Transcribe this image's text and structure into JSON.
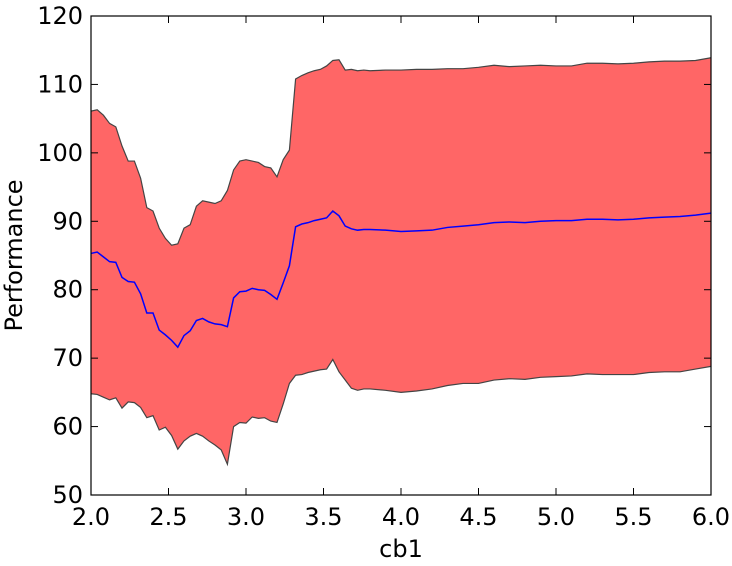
{
  "chart_data": {
    "type": "area",
    "title": "",
    "xlabel": "cb1",
    "ylabel": "Performance",
    "xlim": [
      2.0,
      6.0
    ],
    "ylim": [
      50,
      120
    ],
    "xticks": [
      2.0,
      2.5,
      3.0,
      3.5,
      4.0,
      4.5,
      5.0,
      5.5,
      6.0
    ],
    "xtick_labels": [
      "2.0",
      "2.5",
      "3.0",
      "3.5",
      "4.0",
      "4.5",
      "5.0",
      "5.5",
      "6.0"
    ],
    "yticks": [
      50,
      60,
      70,
      80,
      90,
      100,
      110,
      120
    ],
    "ytick_labels": [
      "50",
      "60",
      "70",
      "80",
      "90",
      "100",
      "110",
      "120"
    ],
    "grid": false,
    "legend": "none",
    "colors": {
      "band_fill": "#ff6666",
      "band_edge": "#444444",
      "mean_line": "#0000ff"
    },
    "x": [
      2.0,
      2.04,
      2.08,
      2.12,
      2.16,
      2.2,
      2.24,
      2.28,
      2.32,
      2.36,
      2.4,
      2.44,
      2.48,
      2.52,
      2.56,
      2.6,
      2.64,
      2.68,
      2.72,
      2.76,
      2.8,
      2.84,
      2.88,
      2.92,
      2.96,
      3.0,
      3.04,
      3.08,
      3.12,
      3.16,
      3.2,
      3.24,
      3.28,
      3.32,
      3.36,
      3.4,
      3.44,
      3.48,
      3.52,
      3.56,
      3.6,
      3.64,
      3.68,
      3.72,
      3.76,
      3.8,
      3.9,
      4.0,
      4.1,
      4.2,
      4.3,
      4.4,
      4.5,
      4.6,
      4.7,
      4.8,
      4.9,
      5.0,
      5.1,
      5.2,
      5.3,
      5.4,
      5.5,
      5.6,
      5.7,
      5.8,
      5.9,
      6.0
    ],
    "series": [
      {
        "role": "upper",
        "values": [
          106.1,
          106.3,
          105.5,
          104.3,
          103.8,
          101.0,
          98.8,
          98.8,
          96.3,
          92.0,
          91.5,
          89.0,
          87.5,
          86.5,
          86.7,
          89.0,
          89.5,
          92.2,
          93.0,
          92.8,
          92.6,
          93.0,
          94.5,
          97.5,
          98.8,
          99.0,
          98.8,
          98.6,
          98.0,
          97.8,
          96.5,
          99.0,
          100.4,
          110.8,
          111.3,
          111.7,
          112.0,
          112.2,
          112.7,
          113.5,
          113.6,
          112.1,
          112.2,
          112.0,
          112.1,
          112.0,
          112.1,
          112.1,
          112.2,
          112.2,
          112.3,
          112.3,
          112.5,
          112.8,
          112.6,
          112.7,
          112.8,
          112.7,
          112.7,
          113.1,
          113.1,
          113.0,
          113.1,
          113.3,
          113.4,
          113.4,
          113.5,
          113.9
        ]
      },
      {
        "role": "mean",
        "values": [
          85.3,
          85.5,
          84.8,
          84.1,
          84.0,
          81.8,
          81.2,
          81.1,
          79.4,
          76.6,
          76.6,
          74.1,
          73.4,
          72.6,
          71.6,
          73.3,
          74.0,
          75.5,
          75.8,
          75.3,
          75.0,
          74.9,
          74.6,
          78.8,
          79.7,
          79.8,
          80.2,
          80.0,
          79.9,
          79.3,
          78.6,
          81.0,
          83.5,
          89.2,
          89.6,
          89.8,
          90.1,
          90.3,
          90.5,
          91.5,
          90.8,
          89.3,
          88.9,
          88.7,
          88.8,
          88.8,
          88.7,
          88.5,
          88.6,
          88.7,
          89.1,
          89.3,
          89.5,
          89.8,
          89.9,
          89.8,
          90.0,
          90.1,
          90.1,
          90.3,
          90.3,
          90.2,
          90.3,
          90.5,
          90.6,
          90.7,
          90.9,
          91.2
        ]
      },
      {
        "role": "lower",
        "values": [
          64.8,
          64.7,
          64.3,
          63.9,
          64.2,
          62.7,
          63.6,
          63.5,
          62.8,
          61.3,
          61.6,
          59.5,
          59.9,
          58.7,
          56.7,
          57.9,
          58.6,
          59.0,
          58.6,
          57.9,
          57.3,
          56.6,
          54.5,
          60.0,
          60.6,
          60.5,
          61.4,
          61.2,
          61.3,
          60.8,
          60.6,
          63.3,
          66.3,
          67.5,
          67.6,
          67.9,
          68.1,
          68.3,
          68.4,
          69.8,
          68.0,
          66.8,
          65.6,
          65.3,
          65.5,
          65.5,
          65.3,
          65.0,
          65.2,
          65.5,
          66.0,
          66.3,
          66.3,
          66.8,
          67.0,
          66.9,
          67.2,
          67.3,
          67.4,
          67.7,
          67.6,
          67.6,
          67.6,
          67.9,
          68.0,
          68.0,
          68.4,
          68.8
        ]
      }
    ]
  }
}
